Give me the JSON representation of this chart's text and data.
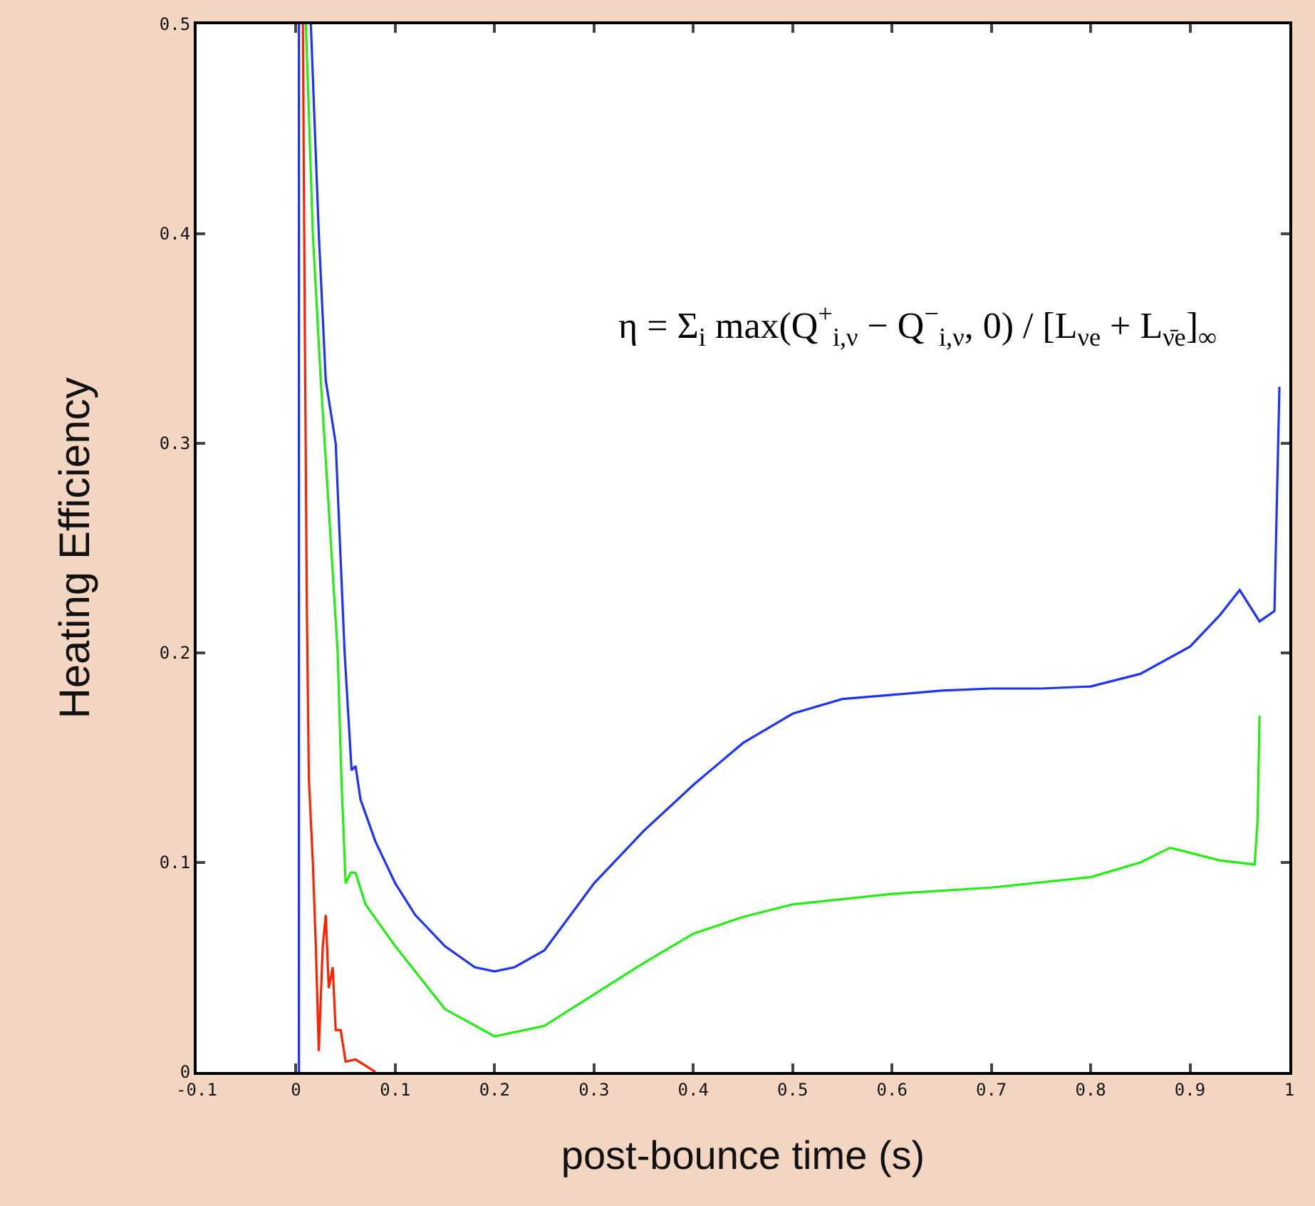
{
  "chart_data": {
    "type": "line",
    "xlabel": "post-bounce time (s)",
    "ylabel": "Heating Efficiency",
    "xlim": [
      -0.1,
      1
    ],
    "xticks": [
      -0.1,
      0,
      0.1,
      0.2,
      0.3,
      0.4,
      0.5,
      0.6,
      0.7,
      0.8,
      0.9,
      1
    ],
    "ylim": [
      0,
      0.5
    ],
    "yticks": [
      0,
      0.1,
      0.2,
      0.3,
      0.4,
      0.5
    ],
    "annotations": [
      "η = Σ$_{i}$ max(Q$^{+}$$_{i,ν}$ − Q$^{−}$$_{i,ν}$, 0) / [L$_{νe}$ + L$_{ν̄e}$]$_{∞}$"
    ],
    "series": [
      {
        "color": "#1a33ff",
        "x": [
          0.003,
          0.003,
          0.009,
          0.015,
          0.023,
          0.03,
          0.04,
          0.049,
          0.056,
          0.06,
          0.065,
          0.08,
          0.1,
          0.12,
          0.15,
          0.18,
          0.2,
          0.22,
          0.25,
          0.3,
          0.35,
          0.4,
          0.45,
          0.5,
          0.55,
          0.6,
          0.65,
          0.7,
          0.75,
          0.8,
          0.85,
          0.9,
          0.93,
          0.95,
          0.97,
          0.985,
          0.99
        ],
        "values": [
          0,
          0.5,
          null,
          0.5,
          0.4,
          0.33,
          0.3,
          0.2,
          0.144,
          0.146,
          0.13,
          0.11,
          0.09,
          0.075,
          0.06,
          0.05,
          0.048,
          0.05,
          0.058,
          0.09,
          0.115,
          0.137,
          0.157,
          0.171,
          0.178,
          0.18,
          0.182,
          0.183,
          0.183,
          0.184,
          0.19,
          0.203,
          0.218,
          0.23,
          0.215,
          0.22,
          0.327
        ]
      },
      {
        "color": "#22ee11",
        "x": [
          0.01,
          0.017,
          0.025,
          0.032,
          0.042,
          0.046,
          0.05,
          0.055,
          0.06,
          0.07,
          0.1,
          0.15,
          0.2,
          0.25,
          0.3,
          0.35,
          0.4,
          0.45,
          0.5,
          0.6,
          0.7,
          0.8,
          0.85,
          0.88,
          0.93,
          0.965,
          0.968,
          0.97
        ],
        "values": [
          0.5,
          0.4,
          0.33,
          0.277,
          0.2,
          0.137,
          0.09,
          0.095,
          0.095,
          0.08,
          0.06,
          0.03,
          0.017,
          0.022,
          0.037,
          0.052,
          0.066,
          0.074,
          0.08,
          0.085,
          0.088,
          0.093,
          0.1,
          0.107,
          0.101,
          0.099,
          0.12,
          0.17
        ]
      },
      {
        "color": "#ff2200",
        "x": [
          0.007,
          0.009,
          0.011,
          0.013,
          0.017,
          0.02,
          0.023,
          0.027,
          0.03,
          0.033,
          0.037,
          0.04,
          0.045,
          0.05,
          0.06,
          0.07,
          0.08
        ],
        "values": [
          0.5,
          0.35,
          0.22,
          0.14,
          0.1,
          0.06,
          0.01,
          0.06,
          0.075,
          0.04,
          0.05,
          0.02,
          0.02,
          0.005,
          0.006,
          0.003,
          0
        ]
      }
    ]
  }
}
